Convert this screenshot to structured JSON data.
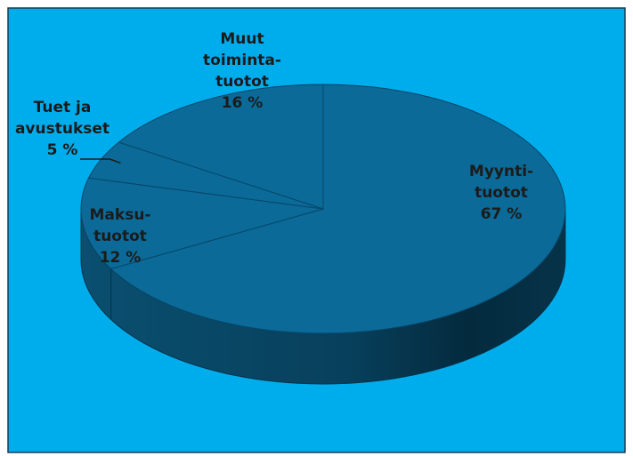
{
  "chart_data": {
    "type": "pie",
    "categories": [
      "Myynti-\ntuotot",
      "Maksu-\ntuotot",
      "Tuet ja\navustukset",
      "Muut\ntoiminta-\ntuotot"
    ],
    "values": [
      67,
      12,
      5,
      16
    ],
    "value_labels": [
      "67 %",
      "12 %",
      "5 %",
      "16 %"
    ],
    "color": "#0b6a98"
  }
}
